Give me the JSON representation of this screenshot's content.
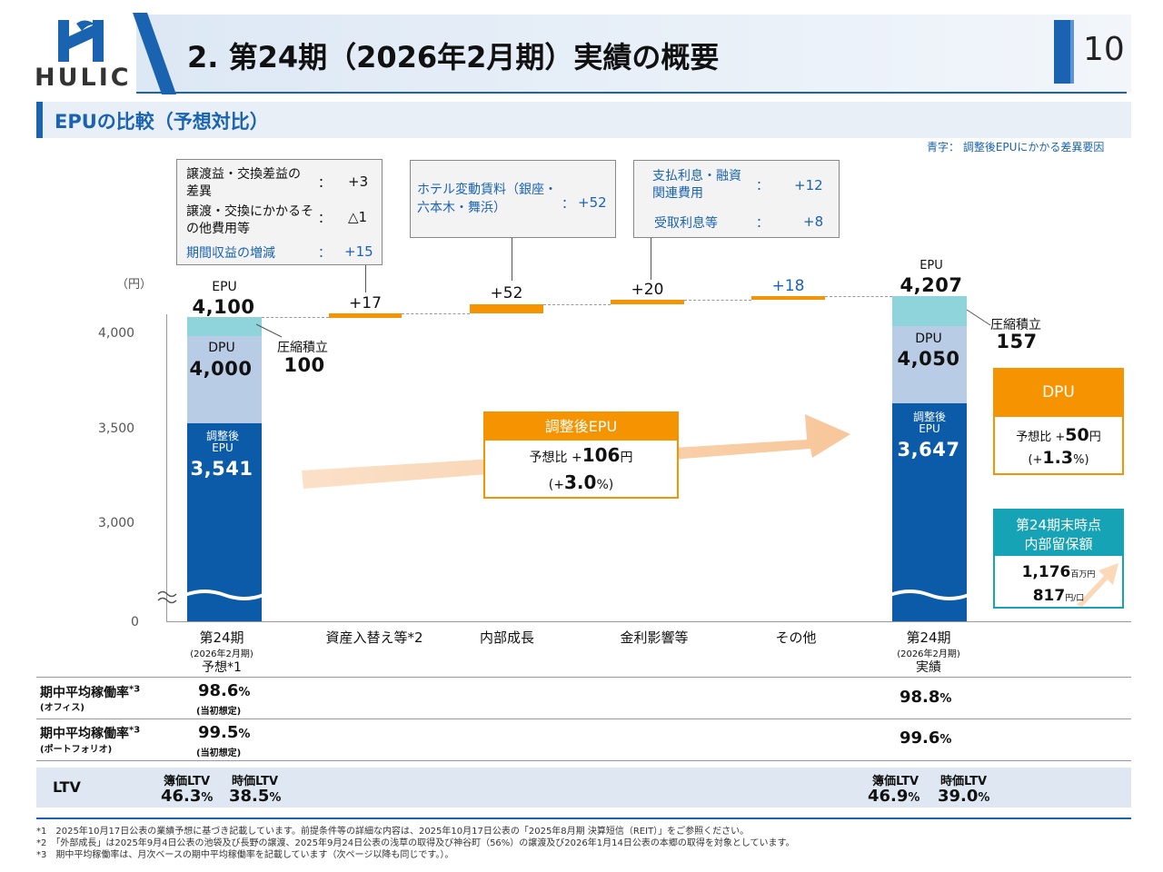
{
  "header": {
    "title": "2. 第24期（2026年2月期）実績の概要",
    "page_number": "10",
    "logo_text": "HULIC"
  },
  "section": {
    "title": "EPUの比較（予想対比）",
    "legend_note": "青字：  調整後EPUにかかる差異要因"
  },
  "axis": {
    "unit": "（円）",
    "ticks": [
      "4,000",
      "3,500",
      "3,000",
      "0"
    ]
  },
  "chart_data": {
    "type": "waterfall",
    "title": "EPUの比較（予想対比）",
    "ylabel": "（円）",
    "categories": [
      "第24期 予想",
      "資産入替え等",
      "内部成長",
      "金利影響等",
      "その他",
      "第24期 実績"
    ],
    "forecast": {
      "epu": 4100,
      "dpu": 4000,
      "adjusted_epu": 3541,
      "reserve": 100
    },
    "steps": [
      17,
      52,
      20,
      18
    ],
    "actual": {
      "epu": 4207,
      "dpu": 4050,
      "adjusted_epu": 3647,
      "reserve": 157
    },
    "ylim": [
      3000,
      4250
    ]
  },
  "forecast_bar": {
    "epu_label": "EPU",
    "epu_value": "4,100",
    "dpu_label": "DPU",
    "dpu_value": "4,000",
    "adj_label1": "調整後",
    "adj_label2": "EPU",
    "adj_value": "3,541",
    "reserve_label": "圧縮積立",
    "reserve_value": "100"
  },
  "actual_bar": {
    "epu_label": "EPU",
    "epu_value": "4,207",
    "dpu_label": "DPU",
    "dpu_value": "4,050",
    "adj_label1": "調整後",
    "adj_label2": "EPU",
    "adj_value": "3,647",
    "reserve_label": "圧縮積立",
    "reserve_value": "157"
  },
  "step_labels": [
    "+17",
    "+52",
    "+20",
    "+18"
  ],
  "callouts": {
    "c1": {
      "r1_label": "譲渡益・交換差益の差異",
      "r1_value": "+3",
      "r2_label": "譲渡・交換にかかるその他費用等",
      "r2_value": "△1",
      "r3_label": "期間収益の増減",
      "r3_value": "+15",
      "colon": "："
    },
    "c2": {
      "label": "ホテル変動賃料（銀座・六本木・舞浜）",
      "value": "+52",
      "colon": "："
    },
    "c3": {
      "r1_label": "支払利息・融資関連費用",
      "r1_value": "+12",
      "r2_label": "受取利息等",
      "r2_value": "+8",
      "colon": "："
    }
  },
  "x_labels": {
    "forecast_1": "第24期",
    "forecast_2": "(2026年2月期)",
    "forecast_3": "予想*1",
    "cat2": "資産入替え等*2",
    "cat3": "内部成長",
    "cat4": "金利影響等",
    "cat5": "その他",
    "actual_1": "第24期",
    "actual_2": "(2026年2月期)",
    "actual_3": "実績"
  },
  "adj_epu_box": {
    "title": "調整後EPU",
    "prefix": "予想比 +",
    "value": "106",
    "unit": "円",
    "pct_open": "(+",
    "pct": "3.0",
    "pct_close": "%)"
  },
  "dpu_box": {
    "title": "DPU",
    "prefix": "予想比 +",
    "value": "50",
    "unit": "円",
    "pct_open": "(+",
    "pct": "1.3",
    "pct_close": "%)"
  },
  "retained_box": {
    "title1": "第24期末時点",
    "title2": "内部留保額",
    "value1": "1,176",
    "unit1": "百万円",
    "value2": "817",
    "unit2": "円/口"
  },
  "table": {
    "r1_label": "期中平均稼働率",
    "r1_sup": "*3",
    "r1_sub": "(オフィス)",
    "r1_forecast": "98.6",
    "r1_forecast_note": "(当初想定)",
    "r1_actual": "98.8",
    "r2_label": "期中平均稼働率",
    "r2_sup": "*3",
    "r2_sub": "(ポートフォリオ)",
    "r2_forecast": "99.5",
    "r2_forecast_note": "(当初想定)",
    "r2_actual": "99.6",
    "pct": "%",
    "ltv_label": "LTV",
    "book_ltv": "簿価LTV",
    "market_ltv": "時価LTV",
    "f_book": "46.3",
    "f_market": "38.5",
    "a_book": "46.9",
    "a_market": "39.0"
  },
  "footnotes": {
    "f1": "*1　2025年10月17日公表の業績予想に基づき記載しています。前提条件等の詳細な内容は、2025年10月17日公表の「2025年8月期 決算短信（REIT）」をご参照ください。",
    "f2": "*2　「外部成長」は2025年9月4日公表の池袋及び長野の譲渡、2025年9月24日公表の浅草の取得及び神谷町（56%）の譲渡及び2026年1月14日公表の本郷の取得を対象としています。",
    "f3": "*3　期中平均稼働率は、月次ベースの期中平均稼働率を記載しています（次ページ以降も同じです。）。"
  },
  "colors": {
    "navy": "#0b5ba8",
    "light_blue": "#b9cce5",
    "cyan": "#8fd3db",
    "orange": "#f59400",
    "teal": "#17a3b6"
  }
}
